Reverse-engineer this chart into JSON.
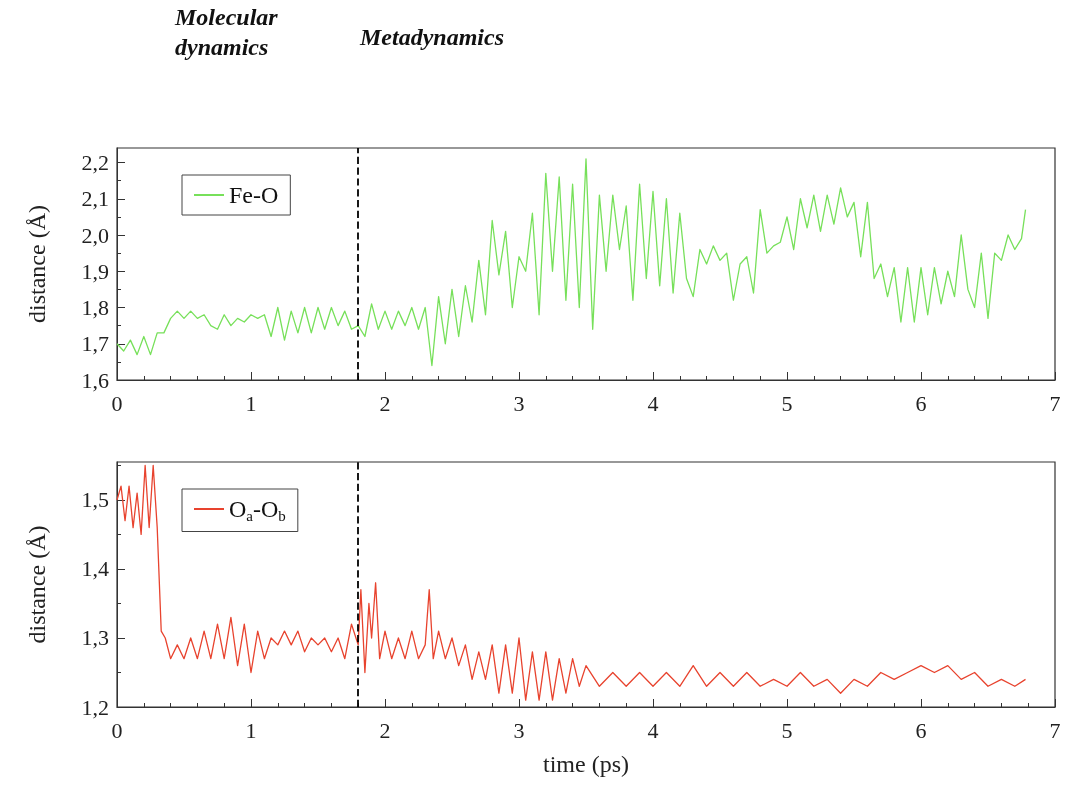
{
  "chart_data": [
    {
      "type": "line",
      "annotations": [
        "Molecular dynamics",
        "Metadynamics"
      ],
      "ylabel": "distance (Å)",
      "xlim": [
        0,
        7
      ],
      "xticks": [
        0,
        1,
        2,
        3,
        4,
        5,
        6,
        7
      ],
      "ylim": [
        1.6,
        2.24
      ],
      "yticks": [
        {
          "value": 1.6,
          "label": "1,6"
        },
        {
          "value": 1.7,
          "label": "1,7"
        },
        {
          "value": 1.8,
          "label": "1,8"
        },
        {
          "value": 1.9,
          "label": "1,9"
        },
        {
          "value": 2.0,
          "label": "2,0"
        },
        {
          "value": 2.1,
          "label": "2,1"
        },
        {
          "value": 2.2,
          "label": "2,2"
        }
      ],
      "legend": "top left",
      "grid": false,
      "ref_lines": [
        {
          "axis": "x",
          "value": 1.8,
          "color": "#000000",
          "line_style": "dashed"
        }
      ],
      "series": [
        {
          "name": "Fe-O",
          "color": "#77e05a",
          "x": [
            0,
            0.05,
            0.1,
            0.15,
            0.2,
            0.25,
            0.3,
            0.35,
            0.4,
            0.45,
            0.5,
            0.55,
            0.6,
            0.65,
            0.7,
            0.75,
            0.8,
            0.85,
            0.9,
            0.95,
            1.0,
            1.05,
            1.1,
            1.15,
            1.2,
            1.25,
            1.3,
            1.35,
            1.4,
            1.45,
            1.5,
            1.55,
            1.6,
            1.65,
            1.7,
            1.75,
            1.8,
            1.85,
            1.9,
            1.95,
            2.0,
            2.05,
            2.1,
            2.15,
            2.2,
            2.25,
            2.3,
            2.35,
            2.4,
            2.45,
            2.5,
            2.55,
            2.6,
            2.65,
            2.7,
            2.75,
            2.8,
            2.85,
            2.9,
            2.95,
            3.0,
            3.05,
            3.1,
            3.15,
            3.2,
            3.25,
            3.3,
            3.35,
            3.4,
            3.45,
            3.5,
            3.55,
            3.6,
            3.65,
            3.7,
            3.75,
            3.8,
            3.85,
            3.9,
            3.95,
            4.0,
            4.05,
            4.1,
            4.15,
            4.2,
            4.25,
            4.3,
            4.35,
            4.4,
            4.45,
            4.5,
            4.55,
            4.6,
            4.65,
            4.7,
            4.75,
            4.8,
            4.85,
            4.9,
            4.95,
            5.0,
            5.05,
            5.1,
            5.15,
            5.2,
            5.25,
            5.3,
            5.35,
            5.4,
            5.45,
            5.5,
            5.55,
            5.6,
            5.65,
            5.7,
            5.75,
            5.8,
            5.85,
            5.9,
            5.95,
            6.0,
            6.05,
            6.1,
            6.15,
            6.2,
            6.25,
            6.3,
            6.35,
            6.4,
            6.45,
            6.5,
            6.55,
            6.6,
            6.65,
            6.7,
            6.75,
            6.78
          ],
          "values": [
            1.7,
            1.68,
            1.71,
            1.67,
            1.72,
            1.67,
            1.73,
            1.73,
            1.77,
            1.79,
            1.77,
            1.79,
            1.77,
            1.78,
            1.75,
            1.74,
            1.78,
            1.75,
            1.77,
            1.76,
            1.78,
            1.77,
            1.78,
            1.72,
            1.8,
            1.71,
            1.79,
            1.73,
            1.8,
            1.73,
            1.8,
            1.74,
            1.8,
            1.75,
            1.79,
            1.74,
            1.75,
            1.72,
            1.81,
            1.74,
            1.79,
            1.74,
            1.79,
            1.75,
            1.8,
            1.74,
            1.8,
            1.64,
            1.83,
            1.7,
            1.85,
            1.72,
            1.86,
            1.76,
            1.93,
            1.78,
            2.04,
            1.89,
            2.01,
            1.8,
            1.94,
            1.9,
            2.06,
            1.78,
            2.17,
            1.9,
            2.16,
            1.82,
            2.14,
            1.8,
            2.21,
            1.74,
            2.11,
            1.9,
            2.11,
            1.96,
            2.08,
            1.82,
            2.14,
            1.88,
            2.12,
            1.86,
            2.1,
            1.84,
            2.06,
            1.88,
            1.83,
            1.96,
            1.92,
            1.97,
            1.93,
            1.95,
            1.82,
            1.92,
            1.94,
            1.84,
            2.07,
            1.95,
            1.97,
            1.98,
            2.05,
            1.96,
            2.1,
            2.02,
            2.11,
            2.01,
            2.11,
            2.03,
            2.13,
            2.05,
            2.09,
            1.94,
            2.09,
            1.88,
            1.92,
            1.83,
            1.91,
            1.76,
            1.91,
            1.76,
            1.91,
            1.78,
            1.91,
            1.81,
            1.9,
            1.83,
            2.0,
            1.85,
            1.8,
            1.95,
            1.77,
            1.95,
            1.93,
            2.0,
            1.96,
            1.99,
            2.07
          ]
        }
      ]
    },
    {
      "type": "line",
      "xlabel": "time (ps)",
      "ylabel": "distance (Å)",
      "xlim": [
        0,
        7
      ],
      "xticks": [
        0,
        1,
        2,
        3,
        4,
        5,
        6,
        7
      ],
      "ylim": [
        1.2,
        1.555
      ],
      "yticks": [
        {
          "value": 1.2,
          "label": "1,2"
        },
        {
          "value": 1.3,
          "label": "1,3"
        },
        {
          "value": 1.4,
          "label": "1,4"
        },
        {
          "value": 1.5,
          "label": "1,5"
        }
      ],
      "legend": "top left",
      "grid": false,
      "ref_lines": [
        {
          "axis": "x",
          "value": 1.8,
          "color": "#000000",
          "line_style": "dashed"
        }
      ],
      "series": [
        {
          "name": "O$_{a}$-O$_{b}$",
          "color": "#e8432e",
          "x": [
            0,
            0.03,
            0.06,
            0.09,
            0.12,
            0.15,
            0.18,
            0.21,
            0.24,
            0.27,
            0.3,
            0.33,
            0.36,
            0.4,
            0.45,
            0.5,
            0.55,
            0.6,
            0.65,
            0.7,
            0.75,
            0.8,
            0.85,
            0.9,
            0.95,
            1.0,
            1.05,
            1.1,
            1.15,
            1.2,
            1.25,
            1.3,
            1.35,
            1.4,
            1.45,
            1.5,
            1.55,
            1.6,
            1.65,
            1.7,
            1.75,
            1.8,
            1.82,
            1.85,
            1.88,
            1.9,
            1.93,
            1.96,
            2.0,
            2.05,
            2.1,
            2.15,
            2.2,
            2.25,
            2.3,
            2.33,
            2.36,
            2.4,
            2.45,
            2.5,
            2.55,
            2.6,
            2.65,
            2.7,
            2.75,
            2.8,
            2.85,
            2.9,
            2.95,
            3.0,
            3.05,
            3.1,
            3.15,
            3.2,
            3.25,
            3.3,
            3.35,
            3.4,
            3.45,
            3.5,
            3.6,
            3.7,
            3.8,
            3.9,
            4.0,
            4.1,
            4.2,
            4.3,
            4.4,
            4.5,
            4.6,
            4.7,
            4.8,
            4.9,
            5.0,
            5.1,
            5.2,
            5.3,
            5.4,
            5.5,
            5.6,
            5.7,
            5.8,
            5.9,
            6.0,
            6.1,
            6.2,
            6.3,
            6.4,
            6.5,
            6.6,
            6.7,
            6.78
          ],
          "values": [
            1.5,
            1.52,
            1.47,
            1.52,
            1.46,
            1.51,
            1.45,
            1.55,
            1.46,
            1.55,
            1.46,
            1.31,
            1.3,
            1.27,
            1.29,
            1.27,
            1.3,
            1.27,
            1.31,
            1.27,
            1.32,
            1.27,
            1.33,
            1.26,
            1.32,
            1.25,
            1.31,
            1.27,
            1.3,
            1.29,
            1.31,
            1.29,
            1.31,
            1.28,
            1.3,
            1.29,
            1.3,
            1.28,
            1.3,
            1.27,
            1.32,
            1.29,
            1.37,
            1.25,
            1.35,
            1.3,
            1.38,
            1.27,
            1.31,
            1.27,
            1.3,
            1.27,
            1.31,
            1.27,
            1.29,
            1.37,
            1.27,
            1.31,
            1.27,
            1.3,
            1.26,
            1.29,
            1.24,
            1.28,
            1.24,
            1.29,
            1.22,
            1.29,
            1.22,
            1.3,
            1.21,
            1.28,
            1.21,
            1.28,
            1.21,
            1.27,
            1.22,
            1.27,
            1.23,
            1.26,
            1.23,
            1.25,
            1.23,
            1.25,
            1.23,
            1.25,
            1.23,
            1.26,
            1.23,
            1.25,
            1.23,
            1.25,
            1.23,
            1.24,
            1.23,
            1.25,
            1.23,
            1.24,
            1.22,
            1.24,
            1.23,
            1.25,
            1.24,
            1.25,
            1.26,
            1.25,
            1.26,
            1.24,
            1.25,
            1.23,
            1.24,
            1.23,
            1.24
          ]
        }
      ]
    }
  ]
}
